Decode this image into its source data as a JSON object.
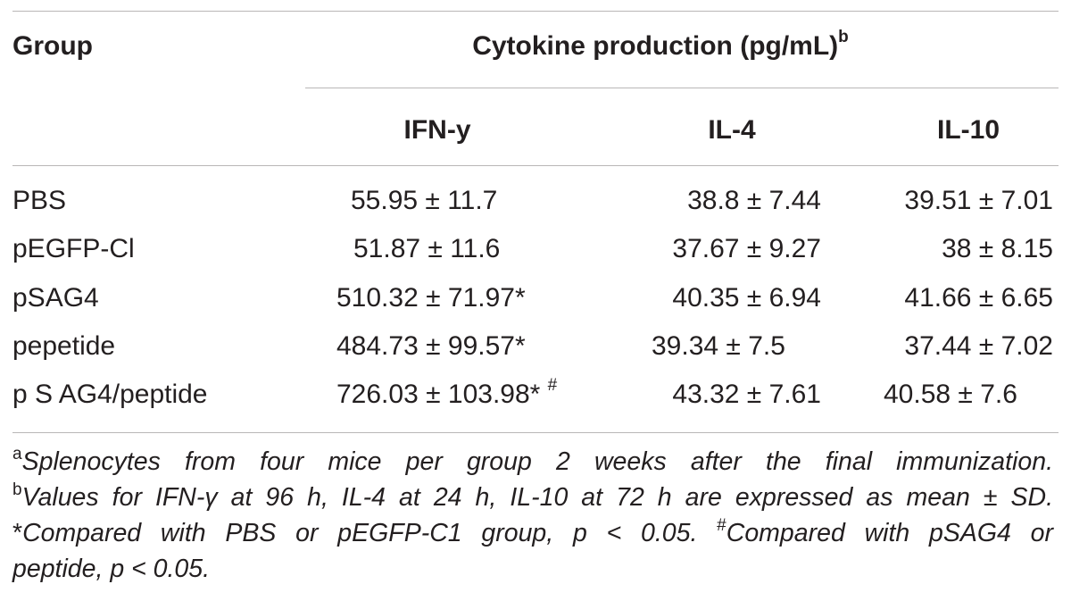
{
  "table": {
    "header": {
      "group_label": "Group",
      "cytokine_label": "Cytokine production (pg/mL)",
      "cytokine_sup": "b",
      "columns": [
        "IFN-y",
        "IL-4",
        "IL-10"
      ]
    },
    "rows": [
      {
        "group": "PBS",
        "ifn": "55.95 ± 11.7",
        "ifn_sup": "",
        "il4": "38.8 ± 7.44",
        "il10": "39.51 ± 7.01"
      },
      {
        "group": "pEGFP-Cl",
        "ifn": "51.87 ± 11.6",
        "ifn_sup": "",
        "il4": "37.67 ± 9.27",
        "il10": "38 ± 8.15"
      },
      {
        "group": "pSAG4",
        "ifn": "510.32 ± 71.97*",
        "ifn_sup": "",
        "il4": "40.35 ± 6.94",
        "il10": "41.66 ± 6.65"
      },
      {
        "group": "pepetide",
        "ifn": "484.73 ± 99.57*",
        "ifn_sup": "",
        "il4": "39.34 ± 7.5",
        "il10": "37.44 ± 7.02"
      },
      {
        "group": "p S AG4/peptide",
        "ifn": "726.03 ± 103.98*",
        "ifn_sup": "#",
        "il4": "43.32 ± 7.61",
        "il10": "40.58 ± 7.6"
      }
    ]
  },
  "footnotes": {
    "a_mark": "a",
    "a_text": "Splenocytes from four mice per group 2 weeks after the final immunization.",
    "b_mark": "b",
    "b_text_1": "Values for IFN-",
    "b_gamma": "γ",
    "b_text_2": " at 96 h, IL-4 at 24 h, IL-10 at 72 h are expressed as mean ± SD.",
    "star_mark": "*",
    "star_text": "Compared with PBS or pEGFP-C1 group, p < 0.05.",
    "hash_mark": "#",
    "hash_text_1": "Compared with pSAG4 or",
    "hash_text_2": "peptide, p < 0.05."
  }
}
